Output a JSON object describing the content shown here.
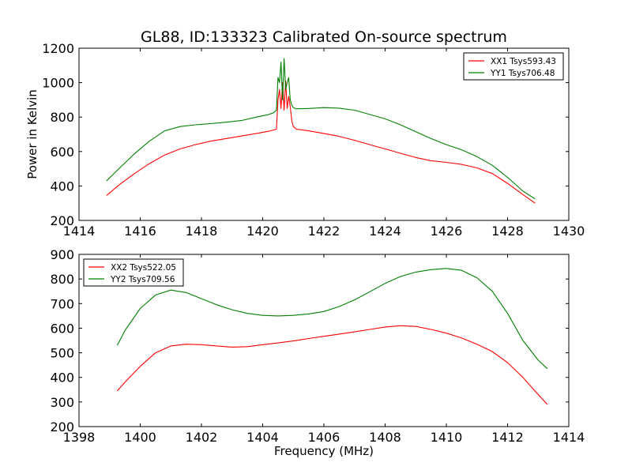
{
  "figure_title": "GL88, ID:133323 Calibrated On-source spectrum",
  "colors": {
    "xx": "#ff0000",
    "yy": "#008000"
  },
  "chart_data": [
    {
      "type": "line",
      "title": "GL88, ID:133323 Calibrated On-source spectrum",
      "xlabel": "",
      "ylabel": "Power in Kelvin",
      "xlim": [
        1414,
        1430
      ],
      "ylim": [
        200,
        1200
      ],
      "xticks": [
        1414,
        1416,
        1418,
        1420,
        1422,
        1424,
        1426,
        1428,
        1430
      ],
      "yticks": [
        200,
        400,
        600,
        800,
        1000,
        1200
      ],
      "legend_position": "upper-right",
      "grid": false,
      "series": [
        {
          "name": "XX1 Tsys593.43",
          "color": "#ff0000",
          "x": [
            1414.9,
            1415.3,
            1415.8,
            1416.3,
            1416.8,
            1417.3,
            1417.8,
            1418.3,
            1418.8,
            1419.3,
            1419.8,
            1420.2,
            1420.35,
            1420.45,
            1420.5,
            1420.55,
            1420.6,
            1420.65,
            1420.7,
            1420.75,
            1420.8,
            1420.85,
            1420.9,
            1420.95,
            1421.0,
            1421.1,
            1421.5,
            1422.0,
            1422.5,
            1423.0,
            1423.5,
            1424.0,
            1424.5,
            1425.0,
            1425.5,
            1426.0,
            1426.5,
            1427.0,
            1427.5,
            1428.0,
            1428.5,
            1428.9
          ],
          "y": [
            345,
            405,
            470,
            530,
            580,
            615,
            640,
            660,
            675,
            690,
            705,
            718,
            725,
            730,
            900,
            960,
            850,
            1000,
            840,
            1010,
            850,
            920,
            860,
            780,
            745,
            730,
            720,
            705,
            688,
            665,
            640,
            615,
            590,
            565,
            547,
            537,
            525,
            505,
            472,
            415,
            350,
            300
          ]
        },
        {
          "name": "YY1 Tsys706.48",
          "color": "#008000",
          "x": [
            1414.9,
            1415.3,
            1415.8,
            1416.3,
            1416.8,
            1417.3,
            1417.8,
            1418.3,
            1418.8,
            1419.3,
            1419.8,
            1420.2,
            1420.35,
            1420.45,
            1420.5,
            1420.55,
            1420.6,
            1420.65,
            1420.7,
            1420.75,
            1420.8,
            1420.85,
            1420.9,
            1420.95,
            1421.0,
            1421.1,
            1421.5,
            1422.0,
            1422.5,
            1423.0,
            1423.5,
            1424.0,
            1424.5,
            1425.0,
            1425.5,
            1426.0,
            1426.5,
            1427.0,
            1427.5,
            1428.0,
            1428.5,
            1428.9
          ],
          "y": [
            430,
            500,
            585,
            660,
            720,
            745,
            755,
            762,
            770,
            780,
            800,
            815,
            825,
            840,
            1030,
            1000,
            1120,
            900,
            1140,
            960,
            1000,
            1030,
            900,
            870,
            855,
            848,
            850,
            855,
            852,
            840,
            815,
            790,
            755,
            715,
            675,
            640,
            610,
            570,
            520,
            450,
            370,
            325
          ]
        }
      ]
    },
    {
      "type": "line",
      "title": "",
      "xlabel": "Frequency (MHz)",
      "ylabel": "",
      "xlim": [
        1398,
        1414
      ],
      "ylim": [
        200,
        900
      ],
      "xticks": [
        1398,
        1400,
        1402,
        1404,
        1406,
        1408,
        1410,
        1412,
        1414
      ],
      "yticks": [
        200,
        300,
        400,
        500,
        600,
        700,
        800,
        900
      ],
      "legend_position": "upper-left",
      "grid": false,
      "series": [
        {
          "name": "XX2 Tsys522.05",
          "color": "#ff0000",
          "x": [
            1399.25,
            1399.5,
            1400.0,
            1400.5,
            1401.0,
            1401.5,
            1402.0,
            1402.5,
            1403.0,
            1403.5,
            1404.0,
            1404.5,
            1405.0,
            1405.5,
            1406.0,
            1406.5,
            1407.0,
            1407.5,
            1408.0,
            1408.5,
            1409.0,
            1409.5,
            1410.0,
            1410.5,
            1411.0,
            1411.5,
            1412.0,
            1412.5,
            1413.0,
            1413.3
          ],
          "y": [
            345,
            380,
            445,
            500,
            528,
            535,
            533,
            528,
            523,
            525,
            533,
            540,
            548,
            558,
            567,
            576,
            585,
            595,
            605,
            610,
            607,
            595,
            580,
            560,
            535,
            505,
            460,
            400,
            330,
            290
          ]
        },
        {
          "name": "YY2 Tsys709.56",
          "color": "#008000",
          "x": [
            1399.25,
            1399.5,
            1400.0,
            1400.5,
            1401.0,
            1401.5,
            1402.0,
            1402.5,
            1403.0,
            1403.5,
            1404.0,
            1404.5,
            1405.0,
            1405.5,
            1406.0,
            1406.5,
            1407.0,
            1407.5,
            1408.0,
            1408.5,
            1409.0,
            1409.5,
            1410.0,
            1410.5,
            1411.0,
            1411.5,
            1412.0,
            1412.5,
            1413.0,
            1413.3
          ],
          "y": [
            530,
            590,
            680,
            735,
            755,
            745,
            720,
            695,
            675,
            660,
            652,
            650,
            652,
            658,
            668,
            688,
            715,
            748,
            782,
            810,
            828,
            838,
            843,
            835,
            805,
            750,
            660,
            550,
            470,
            435
          ]
        }
      ]
    }
  ]
}
